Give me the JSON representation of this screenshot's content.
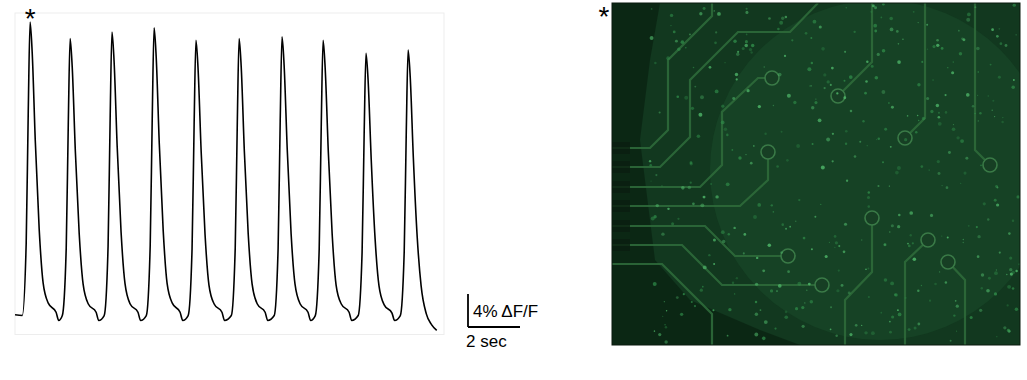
{
  "chart_data": {
    "type": "line",
    "x": [
      0,
      0.28,
      0.43,
      0.51,
      0.58,
      0.66,
      0.78,
      0.93,
      1.08,
      1.28,
      1.58,
      1.68,
      1.82,
      1.97,
      2.05,
      2.12,
      2.2,
      2.32,
      2.47,
      2.62,
      2.82,
      3.12,
      3.22,
      3.43,
      3.58,
      3.66,
      3.73,
      3.81,
      3.93,
      4.08,
      4.23,
      4.43,
      4.73,
      4.83,
      5.05,
      5.2,
      5.28,
      5.35,
      5.43,
      5.55,
      5.7,
      5.85,
      6.05,
      6.35,
      6.45,
      6.66,
      6.81,
      6.89,
      6.96,
      7.04,
      7.16,
      7.31,
      7.46,
      7.66,
      7.96,
      8.06,
      8.32,
      8.47,
      8.55,
      8.62,
      8.7,
      8.82,
      8.97,
      9.12,
      9.32,
      9.62,
      9.72,
      9.97,
      10.12,
      10.2,
      10.27,
      10.35,
      10.47,
      10.62,
      10.77,
      10.97,
      11.27,
      11.37,
      11.55,
      11.7,
      11.78,
      11.85,
      11.93,
      12.05,
      12.2,
      12.35,
      12.55,
      12.85,
      12.95,
      13.2,
      13.35,
      13.43,
      13.5,
      13.58,
      13.7,
      13.85,
      14,
      14.2,
      14.5,
      14.6,
      14.82,
      14.97,
      15.05,
      15.12,
      15.2,
      15.32,
      15.47,
      15.62,
      15.82,
      16.02,
      16.22
    ],
    "values": [
      0.4,
      0.3,
      9.0,
      25.1,
      35.9,
      32.3,
      21.5,
      10.8,
      4.3,
      1.8,
      0.7,
      -0.3,
      0.3,
      8.5,
      23.7,
      33.9,
      30.5,
      20.3,
      10.2,
      4.1,
      1.7,
      0.7,
      -0.3,
      0.3,
      8.7,
      24.3,
      34.7,
      31.2,
      20.8,
      10.4,
      4.2,
      1.7,
      0.7,
      -0.3,
      0.3,
      8.8,
      24.6,
      35.2,
      31.7,
      21.1,
      10.6,
      4.2,
      1.8,
      0.7,
      -0.3,
      0.3,
      8.4,
      23.6,
      33.7,
      30.3,
      20.2,
      10.1,
      4.0,
      1.7,
      0.7,
      -0.3,
      0.3,
      8.5,
      23.7,
      33.9,
      30.5,
      20.3,
      10.2,
      4.1,
      1.7,
      0.7,
      -0.3,
      0.3,
      8.5,
      23.9,
      34.1,
      30.7,
      20.5,
      10.2,
      4.1,
      1.7,
      0.7,
      -0.3,
      0.3,
      8.4,
      23.6,
      33.7,
      30.3,
      20.2,
      10.1,
      4.0,
      1.7,
      0.7,
      -0.3,
      0.3,
      8.0,
      22.5,
      32.1,
      28.9,
      19.3,
      9.6,
      3.9,
      1.6,
      0.6,
      -0.3,
      0.3,
      8.1,
      22.8,
      32.5,
      29.3,
      19.5,
      9.8,
      3.9,
      0.5,
      -0.8,
      -1.5
    ],
    "color": "#000000",
    "xlim": [
      0,
      16.5
    ],
    "ylim": [
      -2,
      37
    ],
    "tick_labels": false,
    "scale_bars": {
      "x": {
        "value": 2,
        "label": "2 sec"
      },
      "y": {
        "value": 4,
        "label": "4% ΔF/F"
      }
    },
    "annotations": [
      {
        "text": "*",
        "x": 0.58
      }
    ]
  },
  "image": {
    "label": "*"
  }
}
